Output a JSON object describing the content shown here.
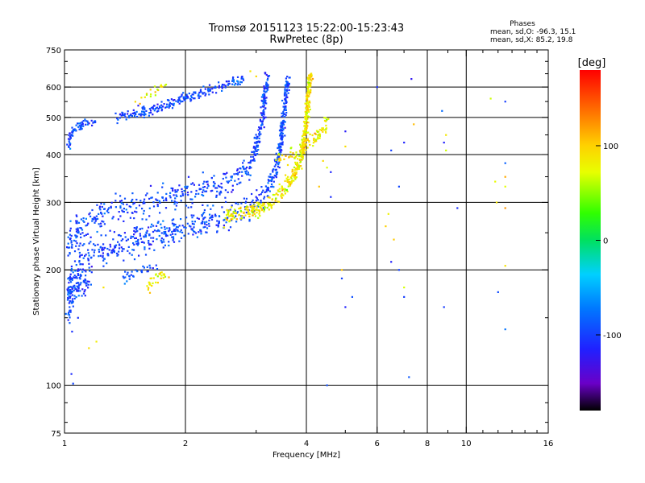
{
  "chart_data": {
    "type": "scatter",
    "title": "Tromsø 20151123 15:22:00-15:23:43",
    "subtitle": "RwPretec (8p)",
    "stats": {
      "heading": "Phases",
      "line1": "mean, sd,O: -96.3, 15.1",
      "line2": "mean, sd,X:  85.2, 19.8"
    },
    "xlabel": "Frequency [MHz]",
    "ylabel": "Stationary phase Virtual Height [km]",
    "x_scale": "log",
    "y_scale": "log",
    "xlim": [
      1,
      16
    ],
    "ylim": [
      75,
      750
    ],
    "x_ticks": [
      1,
      2,
      4,
      6,
      8,
      10,
      16
    ],
    "x_tick_labels": [
      "1",
      "2",
      "4",
      "6",
      "8",
      "10",
      "16"
    ],
    "y_ticks": [
      75,
      100,
      200,
      300,
      400,
      500,
      600,
      750
    ],
    "y_tick_labels": [
      "75",
      "100",
      "200",
      "300",
      "400",
      "500",
      "600",
      "750"
    ],
    "grid_x": [
      2,
      4,
      6,
      8,
      10
    ],
    "grid_y": [
      100,
      200,
      300,
      400,
      500,
      600
    ],
    "grid": true,
    "colorbar": {
      "label": "[deg]",
      "range": [
        -180,
        180
      ],
      "ticks": [
        100,
        0,
        -100
      ],
      "tick_labels": [
        "100",
        "0",
        "-100"
      ]
    },
    "series": [
      {
        "mode": "O",
        "phase_mean": -96.3,
        "phase_sd": 15.1,
        "traces": [
          {
            "segments": [
              [
                1.02,
                160
              ],
              [
                1.05,
                185
              ],
              [
                1.1,
                210
              ],
              [
                1.2,
                225
              ],
              [
                1.4,
                235
              ],
              [
                1.6,
                243
              ],
              [
                1.8,
                250
              ],
              [
                2.0,
                258
              ],
              [
                2.2,
                266
              ],
              [
                2.5,
                276
              ],
              [
                2.8,
                288
              ],
              [
                3.0,
                300
              ],
              [
                3.2,
                320
              ],
              [
                3.35,
                360
              ],
              [
                3.45,
                420
              ],
              [
                3.5,
                500
              ],
              [
                3.55,
                570
              ],
              [
                3.6,
                630
              ]
            ],
            "width_km": 40,
            "count": 700
          },
          {
            "segments": [
              [
                1.02,
                230
              ],
              [
                1.1,
                260
              ],
              [
                1.3,
                285
              ],
              [
                1.6,
                300
              ],
              [
                2.0,
                315
              ],
              [
                2.4,
                330
              ],
              [
                2.7,
                350
              ],
              [
                2.9,
                380
              ],
              [
                3.0,
                420
              ],
              [
                3.1,
                480
              ],
              [
                3.15,
                560
              ],
              [
                3.2,
                640
              ]
            ],
            "width_km": 45,
            "count": 500
          },
          {
            "segments": [
              [
                1.02,
                420
              ],
              [
                1.05,
                460
              ],
              [
                1.1,
                480
              ],
              [
                1.2,
                490
              ]
            ],
            "width_km": 25,
            "count": 70
          },
          {
            "segments": [
              [
                1.35,
                500
              ],
              [
                1.6,
                520
              ],
              [
                1.9,
                550
              ],
              [
                2.2,
                580
              ],
              [
                2.5,
                610
              ],
              [
                2.8,
                630
              ]
            ],
            "width_km": 30,
            "count": 220
          },
          {
            "segments": [
              [
                1.02,
                170
              ],
              [
                1.1,
                180
              ],
              [
                1.15,
                185
              ]
            ],
            "width_km": 20,
            "count": 50
          },
          {
            "segments": [
              [
                1.4,
                190
              ],
              [
                1.55,
                200
              ],
              [
                1.7,
                205
              ]
            ],
            "width_km": 12,
            "count": 30
          }
        ],
        "isolated_points": [
          [
            1.04,
            107
          ],
          [
            1.05,
            101
          ],
          [
            1.08,
            150
          ],
          [
            4.5,
            100
          ],
          [
            7.2,
            105
          ],
          [
            7.3,
            630
          ],
          [
            6.0,
            600
          ],
          [
            5.0,
            460
          ],
          [
            4.9,
            190
          ],
          [
            5.2,
            170
          ],
          [
            5.0,
            160
          ],
          [
            6.8,
            200
          ],
          [
            7.0,
            170
          ],
          [
            8.8,
            160
          ],
          [
            8.7,
            520
          ],
          [
            9.5,
            290
          ],
          [
            12.5,
            380
          ],
          [
            12.5,
            550
          ],
          [
            12.5,
            140
          ],
          [
            12.0,
            175
          ],
          [
            6.5,
            210
          ],
          [
            7.0,
            430
          ],
          [
            8.8,
            430
          ],
          [
            4.6,
            310
          ],
          [
            6.5,
            410
          ],
          [
            6.8,
            330
          ],
          [
            4.6,
            360
          ]
        ]
      },
      {
        "mode": "X",
        "phase_mean": 85.2,
        "phase_sd": 19.8,
        "traces": [
          {
            "segments": [
              [
                2.5,
                275
              ],
              [
                2.8,
                282
              ],
              [
                3.1,
                292
              ],
              [
                3.3,
                305
              ],
              [
                3.55,
                330
              ],
              [
                3.7,
                350
              ],
              [
                3.85,
                380
              ],
              [
                3.95,
                430
              ],
              [
                4.0,
                500
              ],
              [
                4.05,
                580
              ],
              [
                4.1,
                650
              ]
            ],
            "width_km": 25,
            "count": 450
          },
          {
            "segments": [
              [
                3.4,
                390
              ],
              [
                3.7,
                400
              ],
              [
                4.0,
                420
              ],
              [
                4.2,
                440
              ],
              [
                4.4,
                470
              ],
              [
                4.5,
                490
              ]
            ],
            "width_km": 30,
            "count": 90
          },
          {
            "segments": [
              [
                1.6,
                180
              ],
              [
                1.7,
                190
              ],
              [
                1.8,
                195
              ]
            ],
            "width_km": 12,
            "count": 30
          },
          {
            "segments": [
              [
                1.5,
                550
              ],
              [
                1.7,
                590
              ],
              [
                1.8,
                610
              ]
            ],
            "width_km": 20,
            "count": 20
          }
        ],
        "isolated_points": [
          [
            2.9,
            660
          ],
          [
            3.0,
            640
          ],
          [
            1.15,
            125
          ],
          [
            1.2,
            130
          ],
          [
            1.25,
            180
          ],
          [
            4.4,
            385
          ],
          [
            4.3,
            330
          ],
          [
            4.5,
            370
          ],
          [
            4.9,
            200
          ],
          [
            6.3,
            260
          ],
          [
            6.6,
            240
          ],
          [
            7.0,
            180
          ],
          [
            7.4,
            480
          ],
          [
            8.9,
            450
          ],
          [
            8.9,
            410
          ],
          [
            12.5,
            350
          ],
          [
            12.5,
            330
          ],
          [
            12.5,
            290
          ],
          [
            12.5,
            205
          ],
          [
            11.5,
            560
          ],
          [
            11.9,
            300
          ],
          [
            11.8,
            340
          ],
          [
            5.0,
            420
          ],
          [
            6.4,
            280
          ]
        ]
      }
    ]
  }
}
